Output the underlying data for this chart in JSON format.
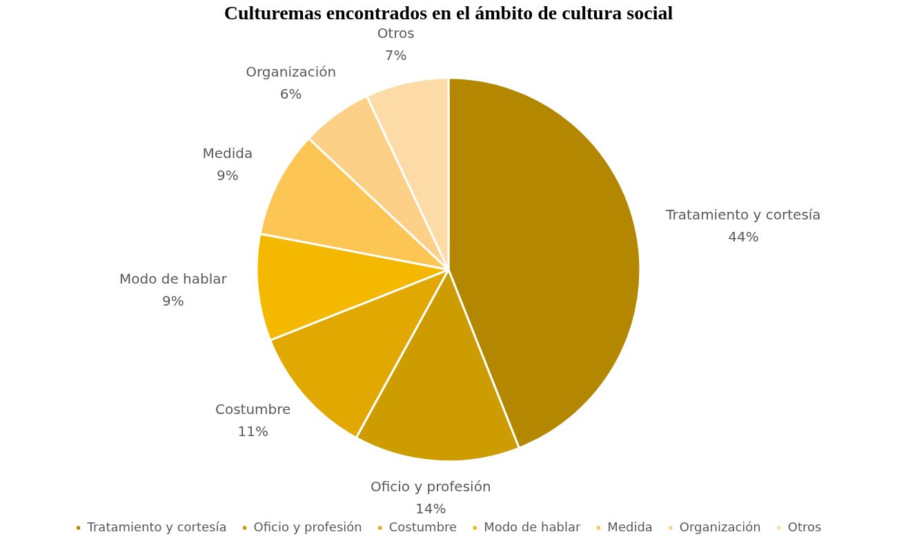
{
  "chart_data": {
    "type": "pie",
    "title": "Culturemas encontrados en el ámbito de cultura social",
    "categories": [
      "Tratamiento y cortesía",
      "Oficio y profesión",
      "Costumbre",
      "Modo de hablar",
      "Medida",
      "Organización",
      "Otros"
    ],
    "values": [
      44,
      14,
      11,
      9,
      9,
      6,
      7
    ],
    "colors": [
      "#b38800",
      "#cc9c00",
      "#e0a800",
      "#f5b800",
      "#fdc654",
      "#fdd087",
      "#fddba7"
    ],
    "value_labels": [
      "44%",
      "14%",
      "11%",
      "9%",
      "9%",
      "6%",
      "7%"
    ],
    "legend": "bottom"
  }
}
